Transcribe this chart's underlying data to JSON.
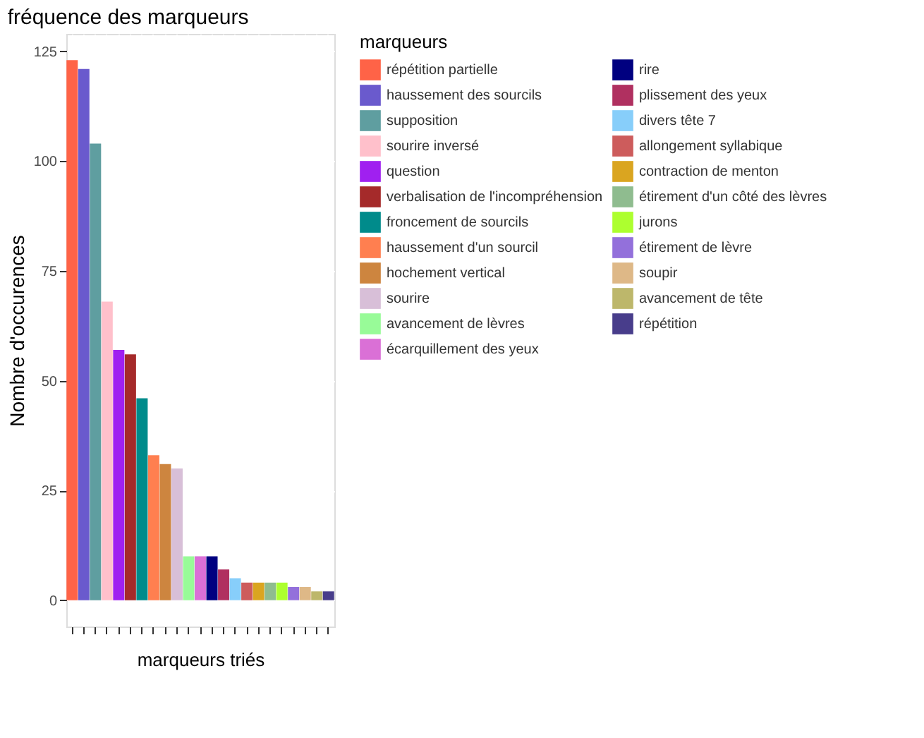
{
  "chart_data": {
    "type": "bar",
    "title": "fréquence des marqueurs",
    "xlabel": "marqueurs triés",
    "ylabel": "Nombre d'occurences",
    "legend_title": "marqueurs",
    "categories": [
      null,
      null,
      null,
      null,
      null,
      null,
      null,
      null,
      null,
      null,
      null,
      null,
      null,
      null,
      null,
      null,
      null,
      null,
      null,
      null,
      null,
      null,
      null
    ],
    "series": [
      {
        "name": "répétition partielle",
        "color": "#ff6347",
        "values": [
          123,
          null,
          null,
          null,
          null,
          null,
          null,
          null,
          null,
          null,
          null,
          null,
          null,
          null,
          null,
          null,
          null,
          null,
          null,
          null,
          null,
          null,
          null
        ]
      },
      {
        "name": "haussement des sourcils",
        "color": "#6a5acd",
        "values": [
          null,
          121,
          null,
          null,
          null,
          null,
          null,
          null,
          null,
          null,
          null,
          null,
          null,
          null,
          null,
          null,
          null,
          null,
          null,
          null,
          null,
          null,
          null
        ]
      },
      {
        "name": "supposition",
        "color": "#5f9ea0",
        "values": [
          null,
          null,
          104,
          null,
          null,
          null,
          null,
          null,
          null,
          null,
          null,
          null,
          null,
          null,
          null,
          null,
          null,
          null,
          null,
          null,
          null,
          null,
          null
        ]
      },
      {
        "name": "sourire inversé",
        "color": "#ffc0cb",
        "values": [
          null,
          null,
          null,
          68,
          null,
          null,
          null,
          null,
          null,
          null,
          null,
          null,
          null,
          null,
          null,
          null,
          null,
          null,
          null,
          null,
          null,
          null,
          null
        ]
      },
      {
        "name": "question",
        "color": "#a020f0",
        "values": [
          null,
          null,
          null,
          null,
          57,
          null,
          null,
          null,
          null,
          null,
          null,
          null,
          null,
          null,
          null,
          null,
          null,
          null,
          null,
          null,
          null,
          null,
          null
        ]
      },
      {
        "name": "verbalisation de l'incompréhension",
        "color": "#a52a2a",
        "values": [
          null,
          null,
          null,
          null,
          null,
          56,
          null,
          null,
          null,
          null,
          null,
          null,
          null,
          null,
          null,
          null,
          null,
          null,
          null,
          null,
          null,
          null,
          null
        ]
      },
      {
        "name": "froncement de sourcils",
        "color": "#008b8b",
        "values": [
          null,
          null,
          null,
          null,
          null,
          null,
          46,
          null,
          null,
          null,
          null,
          null,
          null,
          null,
          null,
          null,
          null,
          null,
          null,
          null,
          null,
          null,
          null
        ]
      },
      {
        "name": "haussement d'un sourcil",
        "color": "#ff7f50",
        "values": [
          null,
          null,
          null,
          null,
          null,
          null,
          null,
          33,
          null,
          null,
          null,
          null,
          null,
          null,
          null,
          null,
          null,
          null,
          null,
          null,
          null,
          null,
          null
        ]
      },
      {
        "name": "hochement vertical",
        "color": "#cd853f",
        "values": [
          null,
          null,
          null,
          null,
          null,
          null,
          null,
          null,
          31,
          null,
          null,
          null,
          null,
          null,
          null,
          null,
          null,
          null,
          null,
          null,
          null,
          null,
          null
        ]
      },
      {
        "name": "sourire",
        "color": "#d8bfd8",
        "values": [
          null,
          null,
          null,
          null,
          null,
          null,
          null,
          null,
          null,
          30,
          null,
          null,
          null,
          null,
          null,
          null,
          null,
          null,
          null,
          null,
          null,
          null,
          null
        ]
      },
      {
        "name": "avancement de lèvres",
        "color": "#98fb98",
        "values": [
          null,
          null,
          null,
          null,
          null,
          null,
          null,
          null,
          null,
          null,
          10,
          null,
          null,
          null,
          null,
          null,
          null,
          null,
          null,
          null,
          null,
          null,
          null
        ]
      },
      {
        "name": "écarquillement des yeux",
        "color": "#da70d6",
        "values": [
          null,
          null,
          null,
          null,
          null,
          null,
          null,
          null,
          null,
          null,
          null,
          10,
          null,
          null,
          null,
          null,
          null,
          null,
          null,
          null,
          null,
          null,
          null
        ]
      },
      {
        "name": "rire",
        "color": "#000080",
        "values": [
          null,
          null,
          null,
          null,
          null,
          null,
          null,
          null,
          null,
          null,
          null,
          null,
          10,
          null,
          null,
          null,
          null,
          null,
          null,
          null,
          null,
          null,
          null
        ]
      },
      {
        "name": "plissement des yeux",
        "color": "#b03060",
        "values": [
          null,
          null,
          null,
          null,
          null,
          null,
          null,
          null,
          null,
          null,
          null,
          null,
          null,
          7,
          null,
          null,
          null,
          null,
          null,
          null,
          null,
          null,
          null
        ]
      },
      {
        "name": "divers tête 7",
        "color": "#87cefa",
        "values": [
          null,
          null,
          null,
          null,
          null,
          null,
          null,
          null,
          null,
          null,
          null,
          null,
          null,
          null,
          5,
          null,
          null,
          null,
          null,
          null,
          null,
          null,
          null
        ]
      },
      {
        "name": "allongement syllabique",
        "color": "#cd5c5c",
        "values": [
          null,
          null,
          null,
          null,
          null,
          null,
          null,
          null,
          null,
          null,
          null,
          null,
          null,
          null,
          null,
          4,
          null,
          null,
          null,
          null,
          null,
          null,
          null
        ]
      },
      {
        "name": "contraction de menton",
        "color": "#daa520",
        "values": [
          null,
          null,
          null,
          null,
          null,
          null,
          null,
          null,
          null,
          null,
          null,
          null,
          null,
          null,
          null,
          null,
          4,
          null,
          null,
          null,
          null,
          null,
          null
        ]
      },
      {
        "name": "étirement d'un côté des lèvres",
        "color": "#8fbc8f",
        "values": [
          null,
          null,
          null,
          null,
          null,
          null,
          null,
          null,
          null,
          null,
          null,
          null,
          null,
          null,
          null,
          null,
          null,
          4,
          null,
          null,
          null,
          null,
          null
        ]
      },
      {
        "name": "jurons",
        "color": "#adff2f",
        "values": [
          null,
          null,
          null,
          null,
          null,
          null,
          null,
          null,
          null,
          null,
          null,
          null,
          null,
          null,
          null,
          null,
          null,
          null,
          4,
          null,
          null,
          null,
          null
        ]
      },
      {
        "name": "étirement de lèvre",
        "color": "#9370db",
        "values": [
          null,
          null,
          null,
          null,
          null,
          null,
          null,
          null,
          null,
          null,
          null,
          null,
          null,
          null,
          null,
          null,
          null,
          null,
          null,
          3,
          null,
          null,
          null
        ]
      },
      {
        "name": "soupir",
        "color": "#deb887",
        "values": [
          null,
          null,
          null,
          null,
          null,
          null,
          null,
          null,
          null,
          null,
          null,
          null,
          null,
          null,
          null,
          null,
          null,
          null,
          null,
          null,
          3,
          null,
          null
        ]
      },
      {
        "name": "avancement de tête",
        "color": "#bdb76b",
        "values": [
          null,
          null,
          null,
          null,
          null,
          null,
          null,
          null,
          null,
          null,
          null,
          null,
          null,
          null,
          null,
          null,
          null,
          null,
          null,
          null,
          null,
          2,
          null
        ]
      },
      {
        "name": "répétition",
        "color": "#483d8b",
        "values": [
          null,
          null,
          null,
          null,
          null,
          null,
          null,
          null,
          null,
          null,
          null,
          null,
          null,
          null,
          null,
          null,
          null,
          null,
          null,
          null,
          null,
          null,
          2
        ]
      }
    ],
    "ylim": [
      -6,
      129
    ],
    "yticks": [
      0,
      25,
      50,
      75,
      100,
      125
    ],
    "grid": true,
    "legend": "right",
    "tick_labels": "y"
  }
}
